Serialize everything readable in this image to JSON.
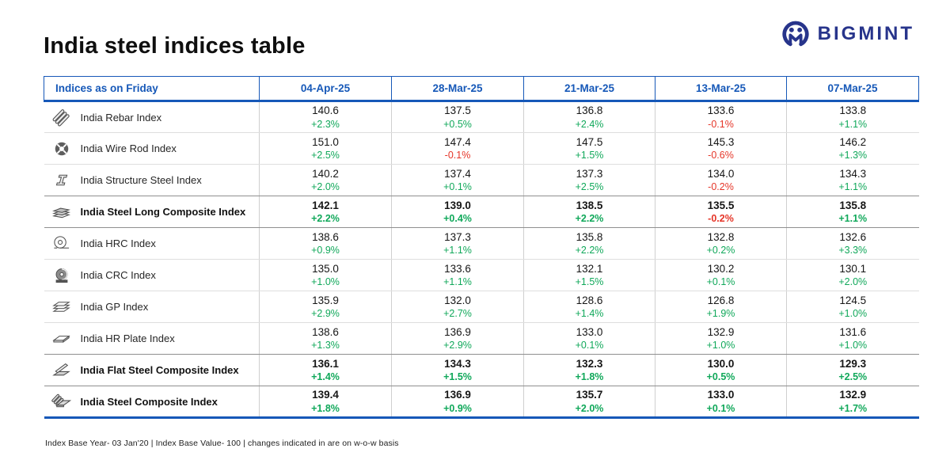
{
  "page": {
    "title": "India steel indices table",
    "brand": "BIGMINT",
    "footer": "Index Base Year- 03 Jan'20 | Index Base Value- 100 | changes indicated in are on w-o-w basis"
  },
  "colors": {
    "header_blue": "#1658b8",
    "logo_navy": "#27348b",
    "positive_green": "#10a85a",
    "negative_red": "#e53528"
  },
  "chart_data": {
    "type": "table",
    "title": "India steel indices table",
    "columns": [
      "Indices as on Friday",
      "04-Apr-25",
      "28-Mar-25",
      "21-Mar-25",
      "13-Mar-25",
      "07-Mar-25"
    ],
    "rows": [
      {
        "label": "India Rebar Index",
        "icon": "rebar-icon",
        "bold": false,
        "values": [
          "140.6",
          "137.5",
          "136.8",
          "133.6",
          "133.8"
        ],
        "changes": [
          "+2.3%",
          "+0.5%",
          "+2.4%",
          "-0.1%",
          "+1.1%"
        ]
      },
      {
        "label": "India Wire Rod Index",
        "icon": "wire-rod-icon",
        "bold": false,
        "values": [
          "151.0",
          "147.4",
          "147.5",
          "145.3",
          "146.2"
        ],
        "changes": [
          "+2.5%",
          "-0.1%",
          "+1.5%",
          "-0.6%",
          "+1.3%"
        ]
      },
      {
        "label": "India Structure Steel Index",
        "icon": "structure-steel-icon",
        "bold": false,
        "values": [
          "140.2",
          "137.4",
          "137.3",
          "134.0",
          "134.3"
        ],
        "changes": [
          "+2.0%",
          "+0.1%",
          "+2.5%",
          "-0.2%",
          "+1.1%"
        ]
      },
      {
        "label": "India Steel Long Composite Index",
        "icon": "long-composite-icon",
        "bold": true,
        "values": [
          "142.1",
          "139.0",
          "138.5",
          "135.5",
          "135.8"
        ],
        "changes": [
          "+2.2%",
          "+0.4%",
          "+2.2%",
          "-0.2%",
          "+1.1%"
        ]
      },
      {
        "label": "India HRC Index",
        "icon": "hrc-coil-icon",
        "bold": false,
        "values": [
          "138.6",
          "137.3",
          "135.8",
          "132.8",
          "132.6"
        ],
        "changes": [
          "+0.9%",
          "+1.1%",
          "+2.2%",
          "+0.2%",
          "+3.3%"
        ]
      },
      {
        "label": "India CRC Index",
        "icon": "crc-coil-icon",
        "bold": false,
        "values": [
          "135.0",
          "133.6",
          "132.1",
          "130.2",
          "130.1"
        ],
        "changes": [
          "+1.0%",
          "+1.1%",
          "+1.5%",
          "+0.1%",
          "+2.0%"
        ]
      },
      {
        "label": "India GP Index",
        "icon": "gp-sheets-icon",
        "bold": false,
        "values": [
          "135.9",
          "132.0",
          "128.6",
          "126.8",
          "124.5"
        ],
        "changes": [
          "+2.9%",
          "+2.7%",
          "+1.4%",
          "+1.9%",
          "+1.0%"
        ]
      },
      {
        "label": "India HR Plate Index",
        "icon": "hr-plate-icon",
        "bold": false,
        "values": [
          "138.6",
          "136.9",
          "133.0",
          "132.9",
          "131.6"
        ],
        "changes": [
          "+1.3%",
          "+2.9%",
          "+0.1%",
          "+1.0%",
          "+1.0%"
        ]
      },
      {
        "label": "India Flat Steel Composite Index",
        "icon": "flat-composite-icon",
        "bold": true,
        "values": [
          "136.1",
          "134.3",
          "132.3",
          "130.0",
          "129.3"
        ],
        "changes": [
          "+1.4%",
          "+1.5%",
          "+1.8%",
          "+0.5%",
          "+2.5%"
        ]
      },
      {
        "label": "India Steel Composite Index",
        "icon": "steel-composite-icon",
        "bold": true,
        "values": [
          "139.4",
          "136.9",
          "135.7",
          "133.0",
          "132.9"
        ],
        "changes": [
          "+1.8%",
          "+0.9%",
          "+2.0%",
          "+0.1%",
          "+1.7%"
        ]
      }
    ]
  }
}
